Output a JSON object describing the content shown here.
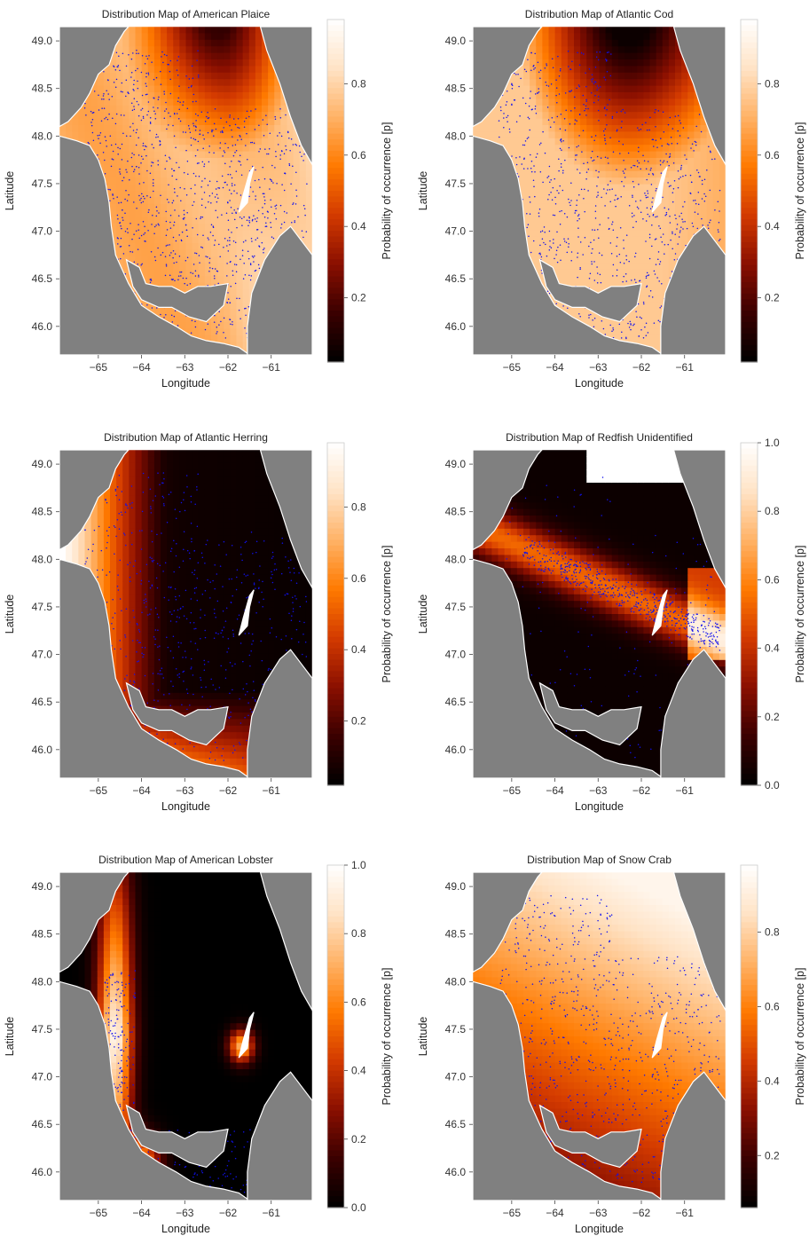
{
  "figure": {
    "colorscale": [
      "#000000",
      "#3a0000",
      "#8a0f00",
      "#d33a00",
      "#ff7a00",
      "#ffb266",
      "#ffe3c6",
      "#ffffff"
    ],
    "land_color": "#808080",
    "point_color": "#1010ee"
  },
  "chart_data": [
    {
      "type": "heatmap",
      "title": "Distribution Map of American Plaice",
      "xlabel": "Longitude",
      "ylabel": "Latitude",
      "xlim": [
        -65.9,
        -60.05
      ],
      "ylim": [
        45.7,
        49.15
      ],
      "xticks": [
        "-65",
        "-64",
        "-63",
        "-62",
        "-61"
      ],
      "yticks": [
        "46.0",
        "46.5",
        "47.0",
        "47.5",
        "48.0",
        "48.5",
        "49.0"
      ],
      "colorbar": {
        "label": "Probability of occurrence [p]",
        "range": [
          0.02,
          0.98
        ],
        "ticks": [
          "0.2",
          "0.4",
          "0.6",
          "0.8"
        ]
      },
      "pattern": "plaice",
      "point_density": 1.0
    },
    {
      "type": "heatmap",
      "title": "Distribution Map of Atlantic Cod",
      "xlabel": "Longitude",
      "ylabel": "Latitude",
      "xlim": [
        -65.9,
        -60.05
      ],
      "ylim": [
        45.7,
        49.15
      ],
      "xticks": [
        "-65",
        "-64",
        "-63",
        "-62",
        "-61"
      ],
      "yticks": [
        "46.0",
        "46.5",
        "47.0",
        "47.5",
        "48.0",
        "48.5",
        "49.0"
      ],
      "colorbar": {
        "label": "Probability of occurrence [p]",
        "range": [
          0.02,
          0.98
        ],
        "ticks": [
          "0.2",
          "0.4",
          "0.6",
          "0.8"
        ]
      },
      "pattern": "cod",
      "point_density": 0.85
    },
    {
      "type": "heatmap",
      "title": "Distribution Map of Atlantic Herring",
      "xlabel": "Longitude",
      "ylabel": "Latitude",
      "xlim": [
        -65.9,
        -60.05
      ],
      "ylim": [
        45.7,
        49.15
      ],
      "xticks": [
        "-65",
        "-64",
        "-63",
        "-62",
        "-61"
      ],
      "yticks": [
        "46.0",
        "46.5",
        "47.0",
        "47.5",
        "48.0",
        "48.5",
        "49.0"
      ],
      "colorbar": {
        "label": "Probability of occurrence [p]",
        "range": [
          0.02,
          0.98
        ],
        "ticks": [
          "0.2",
          "0.4",
          "0.6",
          "0.8"
        ]
      },
      "pattern": "herring",
      "point_density": 0.6
    },
    {
      "type": "heatmap",
      "title": "Distribution Map of Redfish Unidentified",
      "xlabel": "Longitude",
      "ylabel": "Latitude",
      "xlim": [
        -65.9,
        -60.05
      ],
      "ylim": [
        45.7,
        49.15
      ],
      "xticks": [
        "-65",
        "-64",
        "-63",
        "-62",
        "-61"
      ],
      "yticks": [
        "46.0",
        "46.5",
        "47.0",
        "47.5",
        "48.0",
        "48.5",
        "49.0"
      ],
      "colorbar": {
        "label": "Probability of occurrence [p]",
        "range": [
          0.0,
          1.0
        ],
        "ticks": [
          "0.0",
          "0.2",
          "0.4",
          "0.6",
          "0.8",
          "1.0"
        ]
      },
      "pattern": "redfish",
      "point_density": 0.5
    },
    {
      "type": "heatmap",
      "title": "Distribution Map of American Lobster",
      "xlabel": "Longitude",
      "ylabel": "Latitude",
      "xlim": [
        -65.9,
        -60.05
      ],
      "ylim": [
        45.7,
        49.15
      ],
      "xticks": [
        "-65",
        "-64",
        "-63",
        "-62",
        "-61"
      ],
      "yticks": [
        "46.0",
        "46.5",
        "47.0",
        "47.5",
        "48.0",
        "48.5",
        "49.0"
      ],
      "colorbar": {
        "label": "Probability of occurrence [p]",
        "range": [
          0.0,
          1.0
        ],
        "ticks": [
          "0.0",
          "0.2",
          "0.4",
          "0.6",
          "0.8",
          "1.0"
        ]
      },
      "pattern": "lobster",
      "point_density": 0.25
    },
    {
      "type": "heatmap",
      "title": "Distribution Map of Snow Crab",
      "xlabel": "Longitude",
      "ylabel": "Latitude",
      "xlim": [
        -65.9,
        -60.05
      ],
      "ylim": [
        45.7,
        49.15
      ],
      "xticks": [
        "-65",
        "-64",
        "-63",
        "-62",
        "-61"
      ],
      "yticks": [
        "46.0",
        "46.5",
        "47.0",
        "47.5",
        "48.0",
        "48.5",
        "49.0"
      ],
      "colorbar": {
        "label": "Probability of occurrence [p]",
        "range": [
          0.06,
          0.98
        ],
        "ticks": [
          "0.2",
          "0.4",
          "0.6",
          "0.8"
        ]
      },
      "pattern": "crab",
      "point_density": 0.7
    }
  ]
}
